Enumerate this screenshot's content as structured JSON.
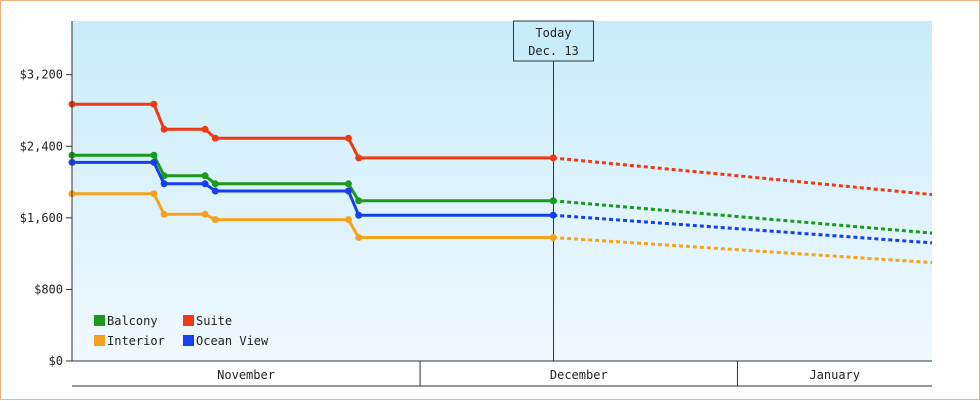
{
  "chart_data": {
    "type": "line",
    "y_axis": {
      "min": 0,
      "max": 3800,
      "ticks": [
        0,
        800,
        1600,
        2400,
        3200
      ],
      "tick_labels": [
        "$0",
        "$800",
        "$1,600",
        "$2,400",
        "$3,200"
      ]
    },
    "x_axis": {
      "start": "2015-10-27",
      "end": "2016-01-19",
      "months": [
        {
          "label": "November",
          "start": "2015-10-27",
          "end": "2015-11-30"
        },
        {
          "label": "December",
          "start": "2015-11-30",
          "end": "2015-12-31"
        },
        {
          "label": "January",
          "start": "2015-12-31",
          "end": "2016-01-19"
        }
      ]
    },
    "today": {
      "line1": "Today",
      "line2": "Dec. 13",
      "date": "2015-12-13"
    },
    "legend_position": "bottom-left",
    "series": [
      {
        "name": "Balcony",
        "color": "#1a9a1a",
        "actual": [
          [
            "2015-10-27",
            2300
          ],
          [
            "2015-11-04",
            2300
          ],
          [
            "2015-11-05",
            2070
          ],
          [
            "2015-11-09",
            2070
          ],
          [
            "2015-11-10",
            1980
          ],
          [
            "2015-11-23",
            1980
          ],
          [
            "2015-11-24",
            1790
          ],
          [
            "2015-12-13",
            1790
          ]
        ],
        "forecast": [
          [
            "2015-12-13",
            1790
          ],
          [
            "2016-01-19",
            1430
          ]
        ]
      },
      {
        "name": "Suite",
        "color": "#ee3a12",
        "actual": [
          [
            "2015-10-27",
            2870
          ],
          [
            "2015-11-04",
            2870
          ],
          [
            "2015-11-05",
            2590
          ],
          [
            "2015-11-09",
            2590
          ],
          [
            "2015-11-10",
            2490
          ],
          [
            "2015-11-23",
            2490
          ],
          [
            "2015-11-24",
            2270
          ],
          [
            "2015-12-13",
            2270
          ]
        ],
        "forecast": [
          [
            "2015-12-13",
            2270
          ],
          [
            "2016-01-19",
            1860
          ]
        ]
      },
      {
        "name": "Interior",
        "color": "#f6a21e",
        "actual": [
          [
            "2015-10-27",
            1870
          ],
          [
            "2015-11-04",
            1870
          ],
          [
            "2015-11-05",
            1640
          ],
          [
            "2015-11-09",
            1640
          ],
          [
            "2015-11-10",
            1580
          ],
          [
            "2015-11-23",
            1580
          ],
          [
            "2015-11-24",
            1380
          ],
          [
            "2015-12-13",
            1380
          ]
        ],
        "forecast": [
          [
            "2015-12-13",
            1380
          ],
          [
            "2016-01-19",
            1100
          ]
        ]
      },
      {
        "name": "Ocean View",
        "color": "#1440ee",
        "actual": [
          [
            "2015-10-27",
            2220
          ],
          [
            "2015-11-04",
            2220
          ],
          [
            "2015-11-05",
            1980
          ],
          [
            "2015-11-09",
            1980
          ],
          [
            "2015-11-10",
            1900
          ],
          [
            "2015-11-23",
            1900
          ],
          [
            "2015-11-24",
            1630
          ],
          [
            "2015-12-13",
            1630
          ]
        ],
        "forecast": [
          [
            "2015-12-13",
            1630
          ],
          [
            "2016-01-19",
            1320
          ]
        ]
      }
    ]
  }
}
